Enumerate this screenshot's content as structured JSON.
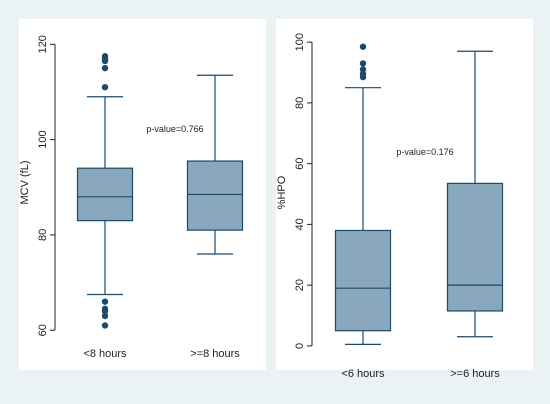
{
  "colors": {
    "background": "#eaf2f3",
    "panel": "#ffffff",
    "box_fill": "#8aa8bd",
    "stroke": "#1c4a6b",
    "outlier": "#1c4a6b",
    "text": "#222222"
  },
  "chart_data": [
    {
      "type": "box",
      "ylabel": "MCV (fL)",
      "xlabel": "",
      "ylim": [
        59,
        123
      ],
      "yticks": [
        60,
        80,
        100,
        120
      ],
      "grid": false,
      "annotation": "p-value=0.766",
      "categories": [
        "<8 hours",
        ">=8 hours"
      ],
      "boxes": [
        {
          "category": "<8 hours",
          "whisker_low": 67.5,
          "q1": 83,
          "median": 88,
          "q3": 94,
          "whisker_high": 109,
          "outliers": [
            117.5,
            117,
            116.5,
            115,
            111,
            66,
            64.5,
            64,
            63,
            61
          ]
        },
        {
          "category": ">=8 hours",
          "whisker_low": 76,
          "q1": 81,
          "median": 88.5,
          "q3": 95.5,
          "whisker_high": 113.5,
          "outliers": []
        }
      ]
    },
    {
      "type": "box",
      "ylabel": "%HPO",
      "xlabel": "",
      "ylim": [
        -3,
        104
      ],
      "yticks": [
        0,
        20,
        40,
        60,
        80,
        100
      ],
      "grid": false,
      "annotation": "p-value=0.176",
      "categories": [
        "<6 hours",
        ">=6 hours"
      ],
      "boxes": [
        {
          "category": "<6 hours",
          "whisker_low": 0.5,
          "q1": 5,
          "median": 19,
          "q3": 38,
          "whisker_high": 85,
          "outliers": [
            98.5,
            93,
            91,
            89.5,
            88.5
          ]
        },
        {
          "category": ">=6 hours",
          "whisker_low": 3,
          "q1": 11.5,
          "median": 20,
          "q3": 53.5,
          "whisker_high": 97,
          "outliers": []
        }
      ]
    }
  ]
}
